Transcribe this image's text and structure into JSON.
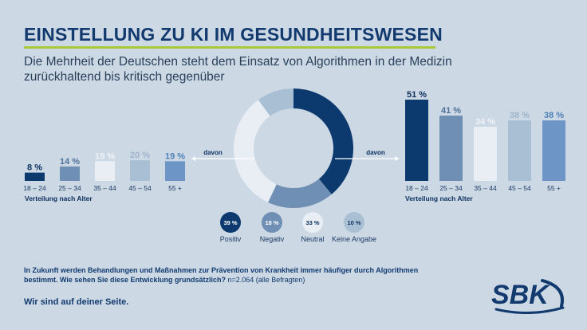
{
  "title": "EINSTELLUNG ZU KI IM GESUNDHEITSWESEN",
  "subtitle": "Die Mehrheit der Deutschen steht dem Einsatz von Algorithmen in der Medizin zurückhaltend bis kritisch gegenüber",
  "colors": {
    "positiv": "#0d3a6e",
    "negativ": "#6f8fb4",
    "neutral": "#e8eef4",
    "keine_angabe": "#a9bfd3",
    "left_55": "#6d96c6",
    "accent": "#a8c83a"
  },
  "chart_data": [
    {
      "type": "pie",
      "donut": true,
      "categories": [
        "Positiv",
        "Negativ",
        "Neutral",
        "Keine Angabe"
      ],
      "values": [
        39,
        18,
        33,
        10
      ],
      "labels": [
        "39 %",
        "18 %",
        "33 %",
        "10 %"
      ]
    },
    {
      "type": "bar",
      "connector_label": "davon",
      "categories": [
        "18 – 24",
        "25 – 34",
        "35 – 44",
        "45 – 54",
        "55 +"
      ],
      "values": [
        8,
        14,
        19,
        20,
        19
      ],
      "labels": [
        "8 %",
        "14 %",
        "19 %",
        "20 %",
        "19 %"
      ],
      "xlabel": "Verteilung nach Alter",
      "ylim": [
        0,
        60
      ]
    },
    {
      "type": "bar",
      "connector_label": "davon",
      "categories": [
        "18 – 24",
        "25 – 34",
        "35 – 44",
        "45 – 54",
        "55 +"
      ],
      "values": [
        51,
        41,
        34,
        38,
        38
      ],
      "labels": [
        "51 %",
        "41 %",
        "34 %",
        "38 %",
        "38 %"
      ],
      "xlabel": "Verteilung nach Alter",
      "ylim": [
        0,
        60
      ]
    }
  ],
  "footnote": {
    "question": "In Zukunft werden Behandlungen und Maßnahmen zur Prävention von Krankheit immer häufiger durch Algorithmen bestimmt. Wie sehen Sie diese Entwicklung grundsätzlich?",
    "sample": "n=2.064 (alle Befragten)"
  },
  "tagline": "Wir sind auf deiner Seite.",
  "logo": {
    "text": "SBK"
  }
}
